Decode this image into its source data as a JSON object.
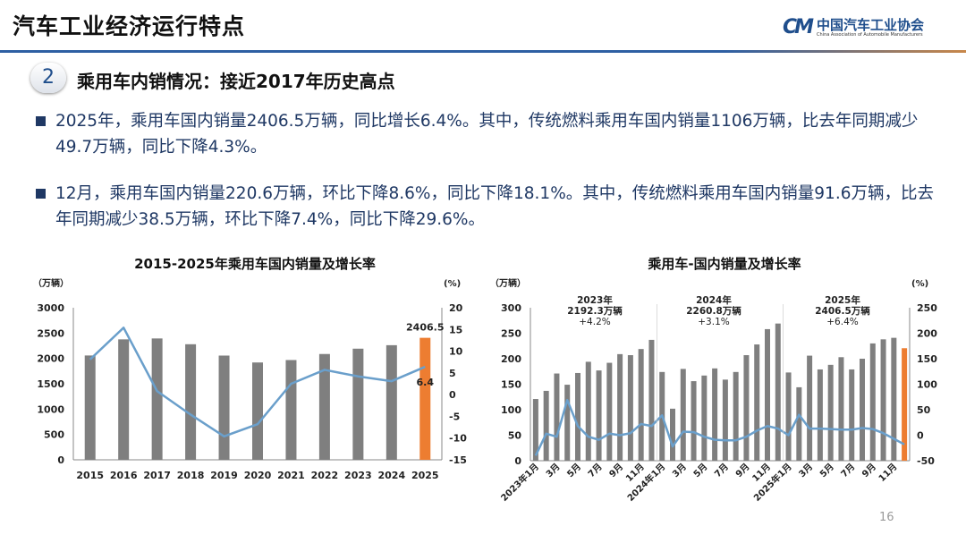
{
  "header": {
    "title": "汽车工业经济运行特点",
    "logo_cn": "中国汽车工业协会",
    "logo_en": "China Association of Automobile Manufacturers",
    "logo_mark": "CM"
  },
  "section": {
    "number": "2",
    "title": "乘用车内销情况：接近2017年历史高点"
  },
  "bullets": [
    "2025年，乘用车国内销量2406.5万辆，同比增长6.4%。其中，传统燃料乘用车国内销量1106万辆，比去年同期减少49.7万辆，同比下降4.3%。",
    "12月，乘用车国内销量220.6万辆，环比下降8.6%，同比下降18.1%。其中，传统燃料乘用车国内销量91.6万辆，比去年同期减少38.5万辆，环比下降7.4%，同比下降29.6%。"
  ],
  "page_number": "16",
  "colors": {
    "bar": "#7f7f7f",
    "highlight_bar": "#ed7d31",
    "line": "#6a9fcb",
    "text": "#1f3864"
  },
  "chart_data": [
    {
      "type": "bar+line",
      "title": "2015-2025年乘用车国内销量及增长率",
      "ylabel": "（万辆）",
      "y2label": "(%)",
      "ylim": [
        0,
        3000
      ],
      "yticks": [
        0,
        500,
        1000,
        1500,
        2000,
        2500,
        3000
      ],
      "y2lim": [
        -15,
        20
      ],
      "y2ticks": [
        -15,
        -10,
        -5,
        0,
        5,
        10,
        15,
        20
      ],
      "categories": [
        "2015",
        "2016",
        "2017",
        "2018",
        "2019",
        "2020",
        "2021",
        "2022",
        "2023",
        "2024",
        "2025"
      ],
      "series": [
        {
          "kind": "bar",
          "axis": "left",
          "values": [
            2058,
            2376,
            2394,
            2280,
            2056,
            1920,
            1968,
            2087,
            2192.3,
            2260.8,
            2406.5
          ]
        },
        {
          "kind": "line",
          "axis": "right",
          "values": [
            8.1,
            15.4,
            0.8,
            -4.6,
            -9.6,
            -6.8,
            2.5,
            5.7,
            4.2,
            3.1,
            6.4
          ]
        }
      ],
      "labels": {
        "bar_last": "2406.5",
        "line_last": "6.4"
      }
    },
    {
      "type": "bar+line",
      "title": "乘用车-国内销量及增长率",
      "ylabel": "（万辆）",
      "y2label": "(%)",
      "ylim": [
        0,
        300
      ],
      "yticks": [
        0,
        50,
        100,
        150,
        200,
        250,
        300
      ],
      "y2lim": [
        -50,
        250
      ],
      "y2ticks": [
        -50,
        0,
        50,
        100,
        150,
        200,
        250
      ],
      "tick_labels": [
        "2023年1月",
        "3月",
        "5月",
        "7月",
        "9月",
        "11月",
        "2024年1月",
        "3月",
        "5月",
        "7月",
        "9月",
        "11月",
        "2025年1月",
        "3月",
        "5月",
        "7月",
        "9月",
        "11月"
      ],
      "categories": [
        "2023-01",
        "2023-02",
        "2023-03",
        "2023-04",
        "2023-05",
        "2023-06",
        "2023-07",
        "2023-08",
        "2023-09",
        "2023-10",
        "2023-11",
        "2023-12",
        "2024-01",
        "2024-02",
        "2024-03",
        "2024-04",
        "2024-05",
        "2024-06",
        "2024-07",
        "2024-08",
        "2024-09",
        "2024-10",
        "2024-11",
        "2024-12",
        "2025-01",
        "2025-02",
        "2025-03",
        "2025-04",
        "2025-05",
        "2025-06",
        "2025-07",
        "2025-08",
        "2025-09",
        "2025-10",
        "2025-11",
        "2025-12"
      ],
      "series": [
        {
          "kind": "bar",
          "axis": "left",
          "values": [
            121,
            137,
            171,
            149,
            172,
            194,
            177,
            192,
            209,
            207,
            219,
            237,
            174,
            102,
            180,
            156,
            167,
            181,
            159,
            174,
            207,
            228,
            258,
            269,
            173,
            144,
            206,
            179,
            188,
            203,
            179,
            200,
            230,
            238,
            241,
            220.6
          ]
        },
        {
          "kind": "line",
          "axis": "right",
          "values": [
            -40,
            3,
            -3,
            69,
            18,
            -3,
            -9,
            3,
            0,
            4,
            22,
            18,
            39,
            -22,
            7,
            6,
            -3,
            -9,
            -10,
            -10,
            -3,
            9,
            18,
            13,
            0,
            40,
            13,
            13,
            12,
            11,
            11,
            14,
            12,
            4,
            -7,
            -18.1
          ]
        }
      ],
      "annotations": [
        {
          "year": "2023年",
          "total": "2192.3万辆",
          "growth": "+4.2%"
        },
        {
          "year": "2024年",
          "total": "2260.8万辆",
          "growth": "+3.1%"
        },
        {
          "year": "2025年",
          "total": "2406.5万辆",
          "growth": "+6.4%"
        }
      ]
    }
  ]
}
